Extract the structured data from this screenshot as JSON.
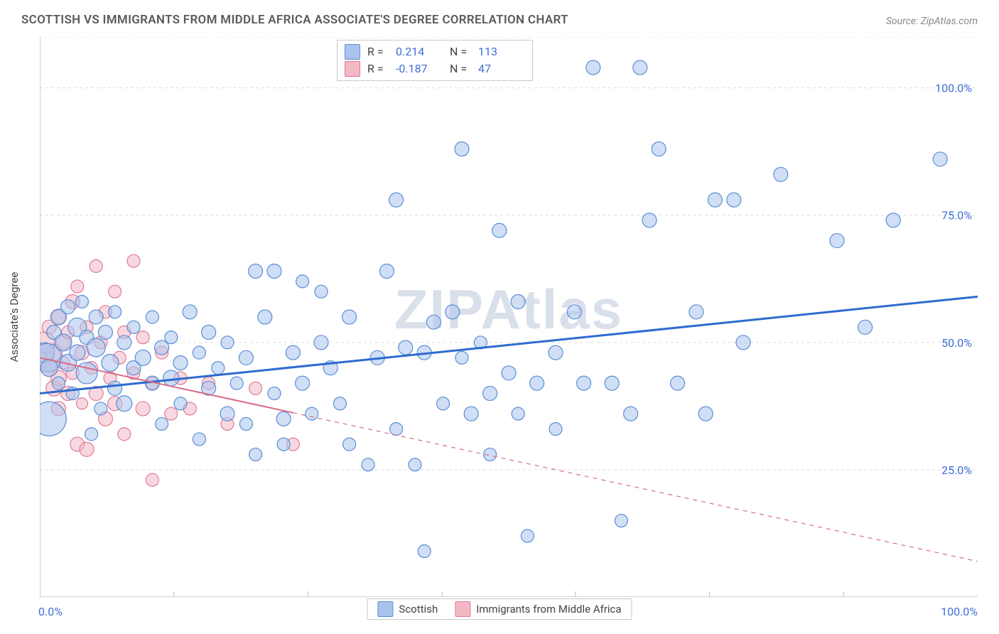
{
  "title": "SCOTTISH VS IMMIGRANTS FROM MIDDLE AFRICA ASSOCIATE'S DEGREE CORRELATION CHART",
  "source": "Source: ZipAtlas.com",
  "ylabel": "Associate's Degree",
  "watermark": "ZIPAtlas",
  "chart": {
    "type": "scatter",
    "background_color": "#ffffff",
    "grid_color": "#dcdcdc",
    "axis_color": "#a9a9a9",
    "tick_mark_color": "#bfbfbf",
    "xlim": [
      0,
      100
    ],
    "ylim": [
      0,
      110
    ],
    "yticks": [
      25,
      50,
      75,
      100
    ],
    "ytick_labels": [
      "25.0%",
      "50.0%",
      "75.0%",
      "100.0%"
    ],
    "ytick_color": "#3b6fd6",
    "xticks_minor": [
      14.3,
      28.6,
      42.9,
      57.1,
      71.4,
      85.7
    ],
    "xtick_labels": [
      "0.0%",
      "100.0%"
    ],
    "series": [
      {
        "name": "Scottish",
        "fill": "#a9c4ec",
        "stroke": "#5b8dd6",
        "fill_opacity": 0.55,
        "line_color": "#2e6bd0",
        "line_width": 3,
        "R": "0.214",
        "N": "113",
        "trend": {
          "x1": 0,
          "y1": 40,
          "x2": 100,
          "y2": 59,
          "dash": false
        },
        "points": [
          {
            "x": 0.5,
            "y": 48,
            "r": 14
          },
          {
            "x": 0.8,
            "y": 47,
            "r": 20
          },
          {
            "x": 1,
            "y": 45,
            "r": 12
          },
          {
            "x": 1,
            "y": 35,
            "r": 24
          },
          {
            "x": 1.5,
            "y": 52,
            "r": 10
          },
          {
            "x": 2,
            "y": 55,
            "r": 11
          },
          {
            "x": 2,
            "y": 42,
            "r": 9
          },
          {
            "x": 2.5,
            "y": 50,
            "r": 12
          },
          {
            "x": 3,
            "y": 57,
            "r": 10
          },
          {
            "x": 3,
            "y": 46,
            "r": 12
          },
          {
            "x": 3.5,
            "y": 40,
            "r": 9
          },
          {
            "x": 4,
            "y": 53,
            "r": 13
          },
          {
            "x": 4,
            "y": 48,
            "r": 11
          },
          {
            "x": 4.5,
            "y": 58,
            "r": 9
          },
          {
            "x": 5,
            "y": 44,
            "r": 15
          },
          {
            "x": 5,
            "y": 51,
            "r": 10
          },
          {
            "x": 5.5,
            "y": 32,
            "r": 9
          },
          {
            "x": 6,
            "y": 55,
            "r": 10
          },
          {
            "x": 6,
            "y": 49,
            "r": 13
          },
          {
            "x": 6.5,
            "y": 37,
            "r": 9
          },
          {
            "x": 7,
            "y": 52,
            "r": 10
          },
          {
            "x": 7.5,
            "y": 46,
            "r": 12
          },
          {
            "x": 8,
            "y": 41,
            "r": 10
          },
          {
            "x": 8,
            "y": 56,
            "r": 9
          },
          {
            "x": 9,
            "y": 50,
            "r": 10
          },
          {
            "x": 9,
            "y": 38,
            "r": 11
          },
          {
            "x": 10,
            "y": 45,
            "r": 10
          },
          {
            "x": 10,
            "y": 53,
            "r": 9
          },
          {
            "x": 11,
            "y": 47,
            "r": 11
          },
          {
            "x": 12,
            "y": 42,
            "r": 10
          },
          {
            "x": 12,
            "y": 55,
            "r": 9
          },
          {
            "x": 13,
            "y": 49,
            "r": 10
          },
          {
            "x": 13,
            "y": 34,
            "r": 9
          },
          {
            "x": 14,
            "y": 43,
            "r": 11
          },
          {
            "x": 14,
            "y": 51,
            "r": 9
          },
          {
            "x": 15,
            "y": 46,
            "r": 10
          },
          {
            "x": 15,
            "y": 38,
            "r": 9
          },
          {
            "x": 16,
            "y": 56,
            "r": 10
          },
          {
            "x": 17,
            "y": 48,
            "r": 9
          },
          {
            "x": 17,
            "y": 31,
            "r": 9
          },
          {
            "x": 18,
            "y": 41,
            "r": 10
          },
          {
            "x": 18,
            "y": 52,
            "r": 10
          },
          {
            "x": 19,
            "y": 45,
            "r": 9
          },
          {
            "x": 20,
            "y": 36,
            "r": 10
          },
          {
            "x": 20,
            "y": 50,
            "r": 9
          },
          {
            "x": 21,
            "y": 42,
            "r": 9
          },
          {
            "x": 22,
            "y": 47,
            "r": 10
          },
          {
            "x": 22,
            "y": 34,
            "r": 9
          },
          {
            "x": 23,
            "y": 64,
            "r": 10
          },
          {
            "x": 23,
            "y": 28,
            "r": 9
          },
          {
            "x": 24,
            "y": 55,
            "r": 10
          },
          {
            "x": 25,
            "y": 64,
            "r": 10
          },
          {
            "x": 25,
            "y": 40,
            "r": 9
          },
          {
            "x": 26,
            "y": 35,
            "r": 10
          },
          {
            "x": 26,
            "y": 30,
            "r": 9
          },
          {
            "x": 27,
            "y": 48,
            "r": 10
          },
          {
            "x": 28,
            "y": 62,
            "r": 9
          },
          {
            "x": 28,
            "y": 42,
            "r": 10
          },
          {
            "x": 29,
            "y": 36,
            "r": 9
          },
          {
            "x": 30,
            "y": 50,
            "r": 10
          },
          {
            "x": 30,
            "y": 60,
            "r": 9
          },
          {
            "x": 31,
            "y": 45,
            "r": 10
          },
          {
            "x": 32,
            "y": 38,
            "r": 9
          },
          {
            "x": 33,
            "y": 30,
            "r": 9
          },
          {
            "x": 33,
            "y": 55,
            "r": 10
          },
          {
            "x": 35,
            "y": 26,
            "r": 9
          },
          {
            "x": 36,
            "y": 47,
            "r": 10
          },
          {
            "x": 37,
            "y": 64,
            "r": 10
          },
          {
            "x": 38,
            "y": 33,
            "r": 9
          },
          {
            "x": 38,
            "y": 78,
            "r": 10
          },
          {
            "x": 39,
            "y": 49,
            "r": 10
          },
          {
            "x": 40,
            "y": 26,
            "r": 9
          },
          {
            "x": 41,
            "y": 48,
            "r": 10
          },
          {
            "x": 41,
            "y": 9,
            "r": 9
          },
          {
            "x": 42,
            "y": 54,
            "r": 10
          },
          {
            "x": 43,
            "y": 38,
            "r": 9
          },
          {
            "x": 44,
            "y": 56,
            "r": 10
          },
          {
            "x": 45,
            "y": 47,
            "r": 9
          },
          {
            "x": 45,
            "y": 88,
            "r": 10
          },
          {
            "x": 46,
            "y": 36,
            "r": 10
          },
          {
            "x": 47,
            "y": 50,
            "r": 9
          },
          {
            "x": 48,
            "y": 40,
            "r": 10
          },
          {
            "x": 48,
            "y": 28,
            "r": 9
          },
          {
            "x": 49,
            "y": 72,
            "r": 10
          },
          {
            "x": 50,
            "y": 44,
            "r": 10
          },
          {
            "x": 51,
            "y": 58,
            "r": 10
          },
          {
            "x": 51,
            "y": 36,
            "r": 9
          },
          {
            "x": 52,
            "y": 12,
            "r": 9
          },
          {
            "x": 53,
            "y": 42,
            "r": 10
          },
          {
            "x": 55,
            "y": 48,
            "r": 10
          },
          {
            "x": 55,
            "y": 33,
            "r": 9
          },
          {
            "x": 57,
            "y": 56,
            "r": 10
          },
          {
            "x": 58,
            "y": 42,
            "r": 10
          },
          {
            "x": 59,
            "y": 104,
            "r": 10
          },
          {
            "x": 61,
            "y": 42,
            "r": 10
          },
          {
            "x": 62,
            "y": 15,
            "r": 9
          },
          {
            "x": 63,
            "y": 36,
            "r": 10
          },
          {
            "x": 64,
            "y": 104,
            "r": 10
          },
          {
            "x": 65,
            "y": 74,
            "r": 10
          },
          {
            "x": 66,
            "y": 88,
            "r": 10
          },
          {
            "x": 68,
            "y": 42,
            "r": 10
          },
          {
            "x": 70,
            "y": 56,
            "r": 10
          },
          {
            "x": 71,
            "y": 36,
            "r": 10
          },
          {
            "x": 72,
            "y": 78,
            "r": 10
          },
          {
            "x": 74,
            "y": 78,
            "r": 10
          },
          {
            "x": 75,
            "y": 50,
            "r": 10
          },
          {
            "x": 79,
            "y": 83,
            "r": 10
          },
          {
            "x": 85,
            "y": 70,
            "r": 10
          },
          {
            "x": 88,
            "y": 53,
            "r": 10
          },
          {
            "x": 91,
            "y": 74,
            "r": 10
          },
          {
            "x": 96,
            "y": 86,
            "r": 10
          }
        ]
      },
      {
        "name": "Immigrants from Middle Africa",
        "fill": "#f2b8c6",
        "stroke": "#e07a94",
        "fill_opacity": 0.55,
        "line_color": "#d96b86",
        "line_width": 2,
        "R": "-0.187",
        "N": "47",
        "trend": {
          "x1": 0,
          "y1": 47,
          "x2": 27,
          "y2": 36.2,
          "dash": false
        },
        "trend_ext": {
          "x1": 27,
          "y1": 36.2,
          "x2": 100,
          "y2": 7,
          "dash": true
        },
        "points": [
          {
            "x": 0.5,
            "y": 47,
            "r": 13
          },
          {
            "x": 0.5,
            "y": 50,
            "r": 15
          },
          {
            "x": 1,
            "y": 45,
            "r": 12
          },
          {
            "x": 1,
            "y": 53,
            "r": 10
          },
          {
            "x": 1.5,
            "y": 41,
            "r": 11
          },
          {
            "x": 1.5,
            "y": 48,
            "r": 12
          },
          {
            "x": 2,
            "y": 55,
            "r": 10
          },
          {
            "x": 2,
            "y": 43,
            "r": 11
          },
          {
            "x": 2,
            "y": 37,
            "r": 10
          },
          {
            "x": 2.5,
            "y": 50,
            "r": 10
          },
          {
            "x": 2.5,
            "y": 46,
            "r": 9
          },
          {
            "x": 3,
            "y": 40,
            "r": 10
          },
          {
            "x": 3,
            "y": 52,
            "r": 9
          },
          {
            "x": 3.5,
            "y": 58,
            "r": 10
          },
          {
            "x": 3.5,
            "y": 44,
            "r": 9
          },
          {
            "x": 4,
            "y": 30,
            "r": 10
          },
          {
            "x": 4,
            "y": 61,
            "r": 9
          },
          {
            "x": 4.5,
            "y": 48,
            "r": 10
          },
          {
            "x": 4.5,
            "y": 38,
            "r": 8
          },
          {
            "x": 5,
            "y": 53,
            "r": 9
          },
          {
            "x": 5,
            "y": 29,
            "r": 10
          },
          {
            "x": 5.5,
            "y": 45,
            "r": 9
          },
          {
            "x": 6,
            "y": 65,
            "r": 9
          },
          {
            "x": 6,
            "y": 40,
            "r": 10
          },
          {
            "x": 6.5,
            "y": 50,
            "r": 9
          },
          {
            "x": 7,
            "y": 35,
            "r": 10
          },
          {
            "x": 7,
            "y": 56,
            "r": 9
          },
          {
            "x": 7.5,
            "y": 43,
            "r": 9
          },
          {
            "x": 8,
            "y": 60,
            "r": 9
          },
          {
            "x": 8,
            "y": 38,
            "r": 10
          },
          {
            "x": 8.5,
            "y": 47,
            "r": 9
          },
          {
            "x": 9,
            "y": 52,
            "r": 9
          },
          {
            "x": 9,
            "y": 32,
            "r": 9
          },
          {
            "x": 10,
            "y": 66,
            "r": 9
          },
          {
            "x": 10,
            "y": 44,
            "r": 9
          },
          {
            "x": 11,
            "y": 37,
            "r": 10
          },
          {
            "x": 11,
            "y": 51,
            "r": 9
          },
          {
            "x": 12,
            "y": 42,
            "r": 9
          },
          {
            "x": 12,
            "y": 23,
            "r": 9
          },
          {
            "x": 13,
            "y": 48,
            "r": 9
          },
          {
            "x": 14,
            "y": 36,
            "r": 9
          },
          {
            "x": 15,
            "y": 43,
            "r": 9
          },
          {
            "x": 16,
            "y": 37,
            "r": 9
          },
          {
            "x": 18,
            "y": 42,
            "r": 9
          },
          {
            "x": 20,
            "y": 34,
            "r": 9
          },
          {
            "x": 23,
            "y": 41,
            "r": 9
          },
          {
            "x": 27,
            "y": 30,
            "r": 9
          }
        ]
      }
    ]
  }
}
